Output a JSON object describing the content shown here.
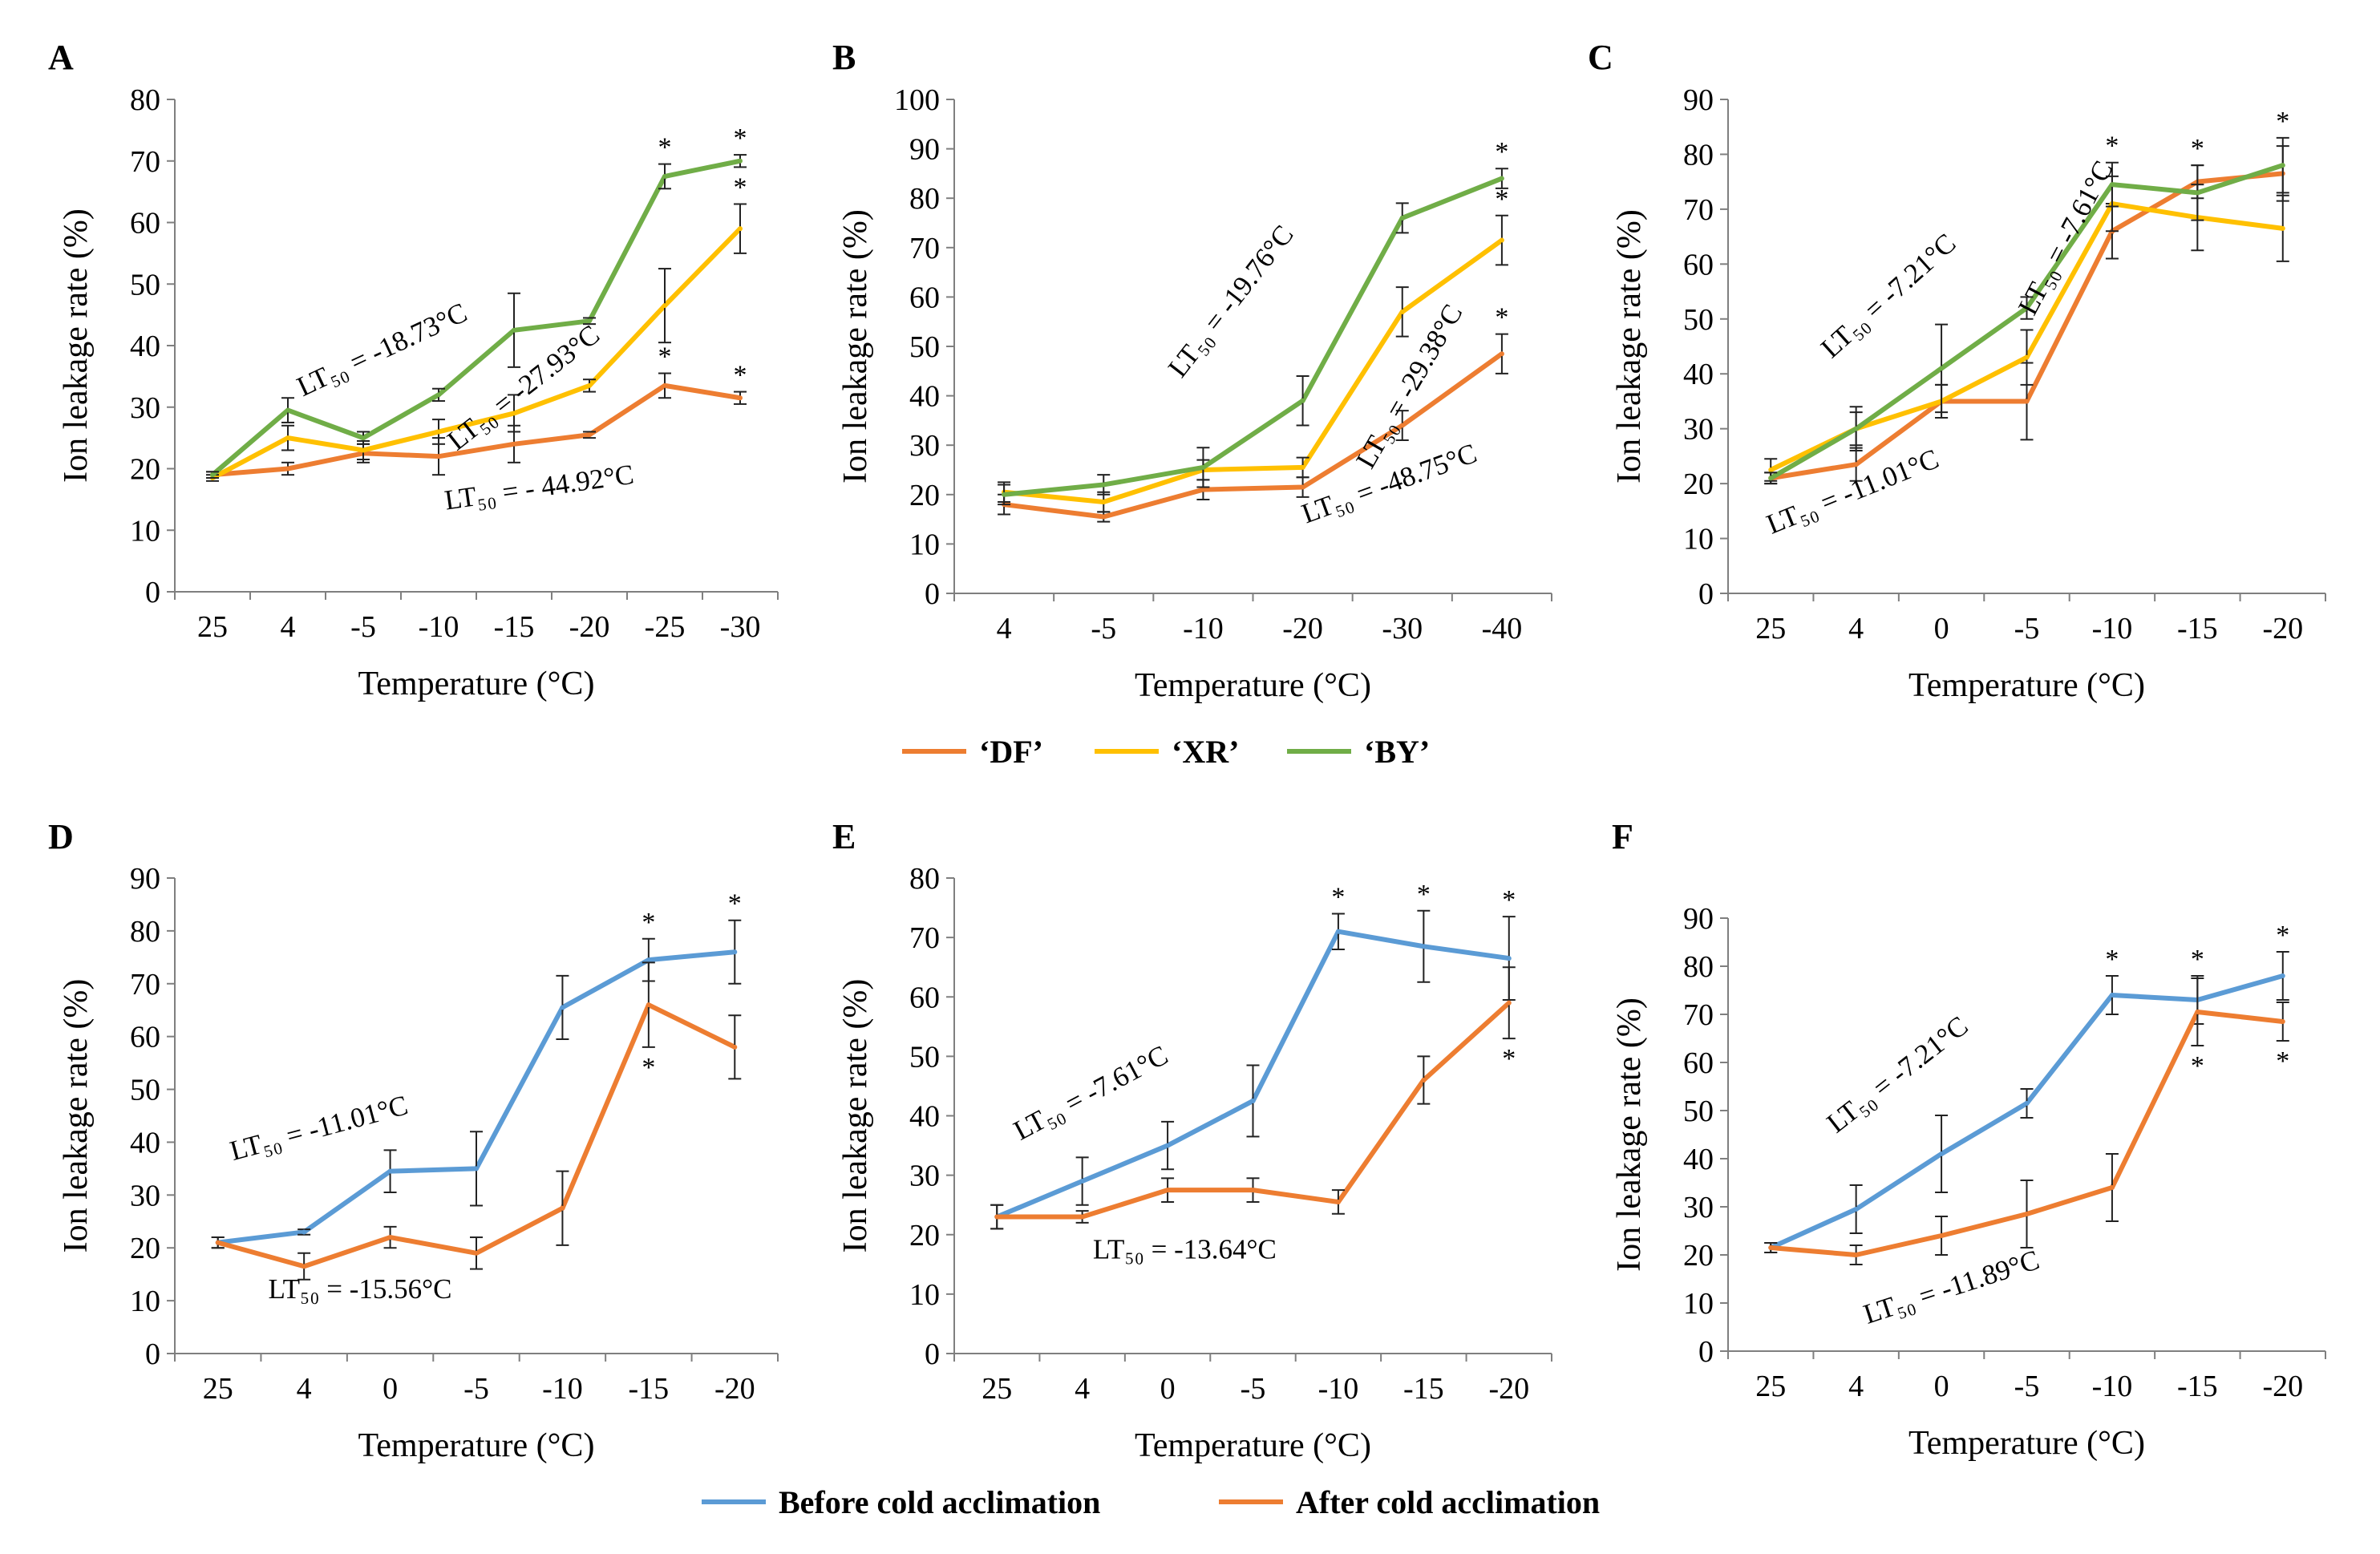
{
  "colors": {
    "DF": "#ED7D31",
    "XR": "#FFC000",
    "BY": "#70AD47",
    "before": "#5B9BD5",
    "after": "#ED7D31",
    "axis": "#7f7f7f",
    "errorbar": "#222222"
  },
  "legends": {
    "top": [
      {
        "key": "DF",
        "label": "‘DF’"
      },
      {
        "key": "XR",
        "label": "‘XR’"
      },
      {
        "key": "BY",
        "label": "‘BY’"
      }
    ],
    "bottom": [
      {
        "key": "before",
        "label": "Before cold acclimation"
      },
      {
        "key": "after",
        "label": "After cold acclimation"
      }
    ]
  },
  "chart_data": [
    {
      "id": "A",
      "type": "line",
      "xlabel": "Temperature (°C)",
      "ylabel": "Ion leakage rate (%)",
      "categories": [
        "25",
        "4",
        "-5",
        "-10",
        "-15",
        "-20",
        "-25",
        "-30"
      ],
      "ylim": [
        0,
        80
      ],
      "ytick_step": 10,
      "series": [
        {
          "key": "DF",
          "name": "‘DF’",
          "values": [
            19,
            20,
            22.5,
            22,
            24,
            25.5,
            33.5,
            31.5
          ],
          "errors": [
            0.5,
            1,
            1.5,
            3,
            3,
            0.5,
            2,
            1
          ],
          "stars": [
            0,
            0,
            0,
            0,
            0,
            0,
            1,
            1
          ]
        },
        {
          "key": "XR",
          "name": "‘XR’",
          "values": [
            18.5,
            25,
            23,
            26,
            29,
            33.5,
            46.5,
            59
          ],
          "errors": [
            0.5,
            2,
            1.5,
            2,
            3,
            1,
            6,
            4
          ],
          "stars": [
            0,
            0,
            0,
            0,
            0,
            0,
            0,
            1
          ]
        },
        {
          "key": "BY",
          "name": "‘BY’",
          "values": [
            19,
            29.5,
            25,
            32,
            42.5,
            44,
            67.5,
            70
          ],
          "errors": [
            0.5,
            2,
            1,
            1,
            6,
            0.5,
            2,
            1
          ],
          "stars": [
            0,
            0,
            0,
            0,
            0,
            0,
            1,
            1
          ]
        }
      ],
      "annotations": [
        {
          "text": "LT₅₀ = -18.73°C",
          "cat": 2.3,
          "y": 38,
          "rot": -25
        },
        {
          "text": "LT₅₀ = -27.93°C",
          "cat": 4.2,
          "y": 32,
          "rot": -38
        },
        {
          "text": "LT₅₀ = - 44.92°C",
          "cat": 4.35,
          "y": 15.5,
          "rot": -8
        }
      ]
    },
    {
      "id": "B",
      "type": "line",
      "xlabel": "Temperature (°C)",
      "ylabel": "Ion leakage rate (%)",
      "categories": [
        "4",
        "-5",
        "-10",
        "-20",
        "-30",
        "-40"
      ],
      "ylim": [
        0,
        100
      ],
      "ytick_step": 10,
      "series": [
        {
          "key": "DF",
          "name": "‘DF’",
          "values": [
            18,
            15.5,
            21,
            21.5,
            34,
            48.5
          ],
          "errors": [
            2,
            1,
            2,
            2,
            3,
            4
          ],
          "stars": [
            0,
            0,
            0,
            0,
            0,
            1
          ]
        },
        {
          "key": "XR",
          "name": "‘XR’",
          "values": [
            20.5,
            18.5,
            25,
            25.5,
            57,
            71.5
          ],
          "errors": [
            2,
            2,
            2,
            2,
            5,
            5
          ],
          "stars": [
            0,
            0,
            0,
            0,
            0,
            1
          ]
        },
        {
          "key": "BY",
          "name": "‘BY’",
          "values": [
            20,
            22,
            25.5,
            39,
            76,
            84
          ],
          "errors": [
            2,
            2,
            4,
            5,
            3,
            2
          ],
          "stars": [
            0,
            0,
            0,
            0,
            0,
            1
          ]
        }
      ],
      "annotations": [
        {
          "text": "LT₅₀ = -19.76°C",
          "cat": 2.35,
          "y": 58,
          "rot": -52
        },
        {
          "text": "LT₅₀ = -29.38°C",
          "cat": 4.15,
          "y": 41,
          "rot": -60
        },
        {
          "text": "LT₅₀ = -48.75°C",
          "cat": 3.9,
          "y": 20.5,
          "rot": -20
        }
      ]
    },
    {
      "id": "C",
      "type": "line",
      "xlabel": "Temperature (°C)",
      "ylabel": "Ion leakage rate (%)",
      "categories": [
        "25",
        "4",
        "0",
        "-5",
        "-10",
        "-15",
        "-20"
      ],
      "ylim": [
        0,
        90
      ],
      "ytick_step": 10,
      "series": [
        {
          "key": "DF",
          "name": "‘DF’",
          "values": [
            21,
            23.5,
            35,
            35,
            66,
            75,
            76.5
          ],
          "errors": [
            1,
            3,
            3,
            7,
            5,
            3,
            5
          ],
          "stars": [
            0,
            0,
            0,
            0,
            0,
            0,
            0
          ]
        },
        {
          "key": "XR",
          "name": "‘XR’",
          "values": [
            22.5,
            30,
            35,
            43,
            71,
            68.5,
            66.5
          ],
          "errors": [
            2,
            3,
            3,
            5,
            5,
            6,
            6
          ],
          "stars": [
            0,
            0,
            0,
            0,
            0,
            0,
            0
          ]
        },
        {
          "key": "BY",
          "name": "‘BY’",
          "values": [
            21,
            30,
            41,
            52,
            74.5,
            73,
            78
          ],
          "errors": [
            1,
            4,
            8,
            2,
            4,
            5,
            5
          ],
          "stars": [
            0,
            0,
            0,
            0,
            1,
            1,
            1
          ]
        }
      ],
      "annotations": [
        {
          "text": "LT₅₀ = -7.21°C",
          "cat": 1.45,
          "y": 53,
          "rot": -42
        },
        {
          "text": "LT₅₀ = -7.61°C",
          "cat": 3.55,
          "y": 64,
          "rot": -62
        },
        {
          "text": "LT₅₀ = -11.01°C",
          "cat": 1.0,
          "y": 17,
          "rot": -22
        }
      ]
    },
    {
      "id": "D",
      "type": "line",
      "xlabel": "Temperature (°C)",
      "ylabel": "Ion leakage rate (%)",
      "categories": [
        "25",
        "4",
        "0",
        "-5",
        "-10",
        "-15",
        "-20"
      ],
      "ylim": [
        0,
        90
      ],
      "ytick_step": 10,
      "series": [
        {
          "key": "before",
          "name": "Before cold acclimation",
          "values": [
            21,
            23,
            34.5,
            35,
            65.5,
            74.5,
            76
          ],
          "errors": [
            1,
            0.5,
            4,
            7,
            6,
            4,
            6
          ],
          "stars": [
            0,
            0,
            0,
            0,
            0,
            1,
            1
          ],
          "star_pos": "above"
        },
        {
          "key": "after",
          "name": "After cold acclimation",
          "values": [
            21,
            16.5,
            22,
            19,
            27.5,
            66,
            58
          ],
          "errors": [
            1,
            2.5,
            2,
            3,
            7,
            8,
            6
          ],
          "stars": [
            0,
            0,
            0,
            0,
            0,
            1,
            0
          ],
          "star_pos": "below"
        }
      ],
      "annotations": [
        {
          "text": "LT₅₀ = -11.01°C",
          "cat": 1.2,
          "y": 41,
          "rot": -15
        },
        {
          "text": "LT₅₀ = -15.56°C",
          "cat": 1.65,
          "y": 10.5,
          "rot": 0
        }
      ]
    },
    {
      "id": "E",
      "type": "line",
      "xlabel": "Temperature (°C)",
      "ylabel": "Ion leakage rate (%)",
      "categories": [
        "25",
        "4",
        "0",
        "-5",
        "-10",
        "-15",
        "-20"
      ],
      "ylim": [
        0,
        80
      ],
      "ytick_step": 10,
      "series": [
        {
          "key": "before",
          "name": "Before cold acclimation",
          "values": [
            23,
            29,
            35,
            42.5,
            71,
            68.5,
            66.5
          ],
          "errors": [
            2,
            4,
            4,
            6,
            3,
            6,
            7
          ],
          "stars": [
            0,
            0,
            0,
            0,
            1,
            1,
            1
          ],
          "star_pos": "above"
        },
        {
          "key": "after",
          "name": "After cold acclimation",
          "values": [
            23,
            23,
            27.5,
            27.5,
            25.5,
            46,
            59
          ],
          "errors": [
            2,
            1,
            2,
            2,
            2,
            4,
            6
          ],
          "stars": [
            0,
            0,
            0,
            0,
            0,
            0,
            1
          ],
          "star_pos": "below"
        }
      ],
      "annotations": [
        {
          "text": "LT₅₀ = -7.61°C",
          "cat": 1.15,
          "y": 42.5,
          "rot": -28
        },
        {
          "text": "LT₅₀ = -13.64°C",
          "cat": 2.2,
          "y": 16,
          "rot": 0
        }
      ]
    },
    {
      "id": "F",
      "type": "line",
      "xlabel": "Temperature (°C)",
      "ylabel": "Ion leakage rate (%)",
      "categories": [
        "25",
        "4",
        "0",
        "-5",
        "-10",
        "-15",
        "-20"
      ],
      "ylim": [
        0,
        90
      ],
      "ytick_step": 10,
      "series": [
        {
          "key": "before",
          "name": "Before cold acclimation",
          "values": [
            21.5,
            29.5,
            41,
            51.5,
            74,
            73,
            78
          ],
          "errors": [
            1,
            5,
            8,
            3,
            4,
            5,
            5
          ],
          "stars": [
            0,
            0,
            0,
            0,
            1,
            1,
            1
          ],
          "star_pos": "above"
        },
        {
          "key": "after",
          "name": "After cold acclimation",
          "values": [
            21.5,
            20,
            24,
            28.5,
            34,
            70.5,
            68.5
          ],
          "errors": [
            1,
            2,
            4,
            7,
            7,
            7,
            4
          ],
          "stars": [
            0,
            0,
            0,
            0,
            0,
            1,
            1
          ],
          "star_pos": "below"
        }
      ],
      "annotations": [
        {
          "text": "LT₅₀ = -7.21°C",
          "cat": 1.55,
          "y": 56,
          "rot": -38
        },
        {
          "text": "LT₅₀ = -11.89°C",
          "cat": 2.15,
          "y": 11.5,
          "rot": -18
        }
      ]
    }
  ]
}
